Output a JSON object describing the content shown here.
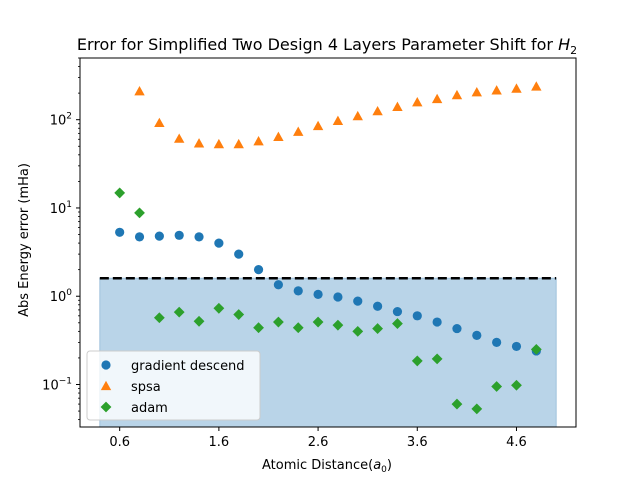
{
  "chart_data": {
    "type": "scatter",
    "title": "Error for Simplified Two Design 4 Layers Parameter Shift for ",
    "title_math": "H",
    "title_math_sub": "2",
    "xlabel": "Atomic Distance(",
    "xlabel_math": "a",
    "xlabel_math_sub": "0",
    "xlabel_close": ")",
    "ylabel": "Abs Energy error (mHa)",
    "xlim": [
      0.2,
      5.2
    ],
    "ylim": [
      0.033,
      500
    ],
    "yscale": "log",
    "xticks": [
      0.6,
      1.6,
      2.6,
      3.6,
      4.6
    ],
    "xtick_labels": [
      "0.6",
      "1.6",
      "2.6",
      "3.6",
      "4.6"
    ],
    "yticks": [
      0.1,
      1,
      10,
      100
    ],
    "chemical_accuracy_line": 1.6,
    "shaded_region": {
      "x": [
        0.4,
        5.0
      ],
      "y_top": 1.6
    },
    "legend_position": "lower-left",
    "grid": false,
    "x": [
      0.6,
      0.8,
      1.0,
      1.2,
      1.4,
      1.6,
      1.8,
      2.0,
      2.2,
      2.4,
      2.6,
      2.8,
      3.0,
      3.2,
      3.4,
      3.6,
      3.8,
      4.0,
      4.2,
      4.4,
      4.6,
      4.8
    ],
    "series": [
      {
        "name": "gradient descend",
        "marker": "circle",
        "color": "#1f77b4",
        "values": [
          5.3,
          4.7,
          4.8,
          4.9,
          4.7,
          4.0,
          3.0,
          2.0,
          1.35,
          1.15,
          1.05,
          0.98,
          0.88,
          0.77,
          0.67,
          0.6,
          0.51,
          0.43,
          0.36,
          0.3,
          0.27,
          0.24
        ]
      },
      {
        "name": "spsa",
        "marker": "triangle",
        "color": "#ff7f0e",
        "values": [
          null,
          210,
          92,
          61,
          54,
          53,
          53,
          57,
          64,
          73,
          85,
          97,
          110,
          125,
          140,
          158,
          172,
          190,
          205,
          215,
          225,
          238
        ]
      },
      {
        "name": "adam",
        "marker": "diamond",
        "color": "#2ca02c",
        "values": [
          14.8,
          8.8,
          0.57,
          0.66,
          0.52,
          0.73,
          0.62,
          0.44,
          0.51,
          0.44,
          0.51,
          0.47,
          0.4,
          0.43,
          0.49,
          0.185,
          0.195,
          0.06,
          0.053,
          0.095,
          0.098,
          0.25
        ]
      }
    ],
    "colors": {
      "shade": "#b9d4e8",
      "shade_edge": "#9fc2dc",
      "hline": "#000000"
    }
  }
}
